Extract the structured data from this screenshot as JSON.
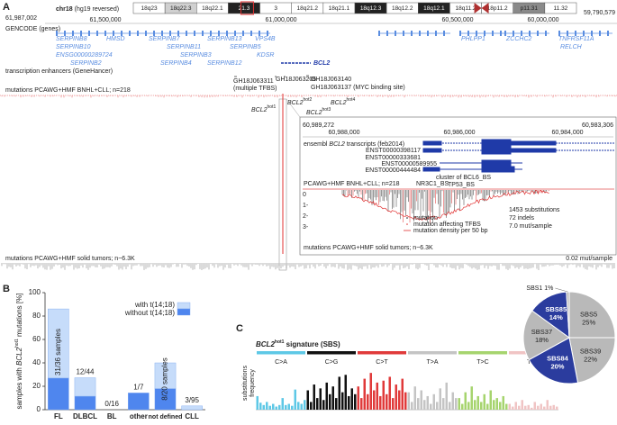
{
  "panel_labels": [
    "A",
    "B",
    "C"
  ],
  "panel_a": {
    "chromosome": "chr18",
    "build": "(hg19 reversed)",
    "bands": [
      {
        "name": "18q23",
        "color": "#ffffff"
      },
      {
        "name": "18q22.3",
        "color": "#d0d0d0"
      },
      {
        "name": "18q22.1",
        "color": "#ffffff"
      },
      {
        "name": "21.3",
        "color": "#222222"
      },
      {
        "name": "3",
        "color": "#ffffff"
      },
      {
        "name": "18q21.2",
        "color": "#ffffff"
      },
      {
        "name": "18q21.1",
        "color": "#ffffff"
      },
      {
        "name": "18q12.3",
        "color": "#222222"
      },
      {
        "name": "18q12.2",
        "color": "#ffffff"
      },
      {
        "name": "18q12.1",
        "color": "#222222"
      },
      {
        "name": "18q11.2",
        "color": "#ffffff"
      },
      {
        "name": "18p11.2",
        "color": "#ffffff"
      },
      {
        "name": "p11.31",
        "color": "#8a8a8a"
      },
      {
        "name": "11.32",
        "color": "#ffffff"
      }
    ],
    "range_start": "61,987,002",
    "range_end": "59,790,579",
    "coordinates": [
      "61,500,000",
      "61,000,000",
      "60,500,000",
      "60,000,000"
    ],
    "gene_track": "GENCODE (genes)",
    "genes": [
      "SERPINB8",
      "HMSD",
      "SERPINB7",
      "SERPINB13",
      "VPS4B",
      "SERPINB10",
      "SERPINB11",
      "SERPINB5",
      "ENSG00000289724",
      "SERPINB3",
      "KDSR",
      "SERPINB2",
      "SERPINB4",
      "SERPINB12",
      "BCL2",
      "PHLPP1",
      "ZCCHC2",
      "TNFRSF11A",
      "RELCH"
    ],
    "enhancer_track": "transcription enhancers (GeneHancer)",
    "mutation_track": "mutations PCAWG+HMF BNHL+CLL; n=218",
    "enhancers": [
      "GH18J063311",
      "(multiple TFBS)",
      "GH18J063205",
      "GH18J063140",
      "GH18J063137 (MYC binding site)"
    ],
    "hotspot_gene": "BCL2",
    "hotspots": [
      "hot1",
      "hot2",
      "hot3",
      "hot4"
    ],
    "inset": {
      "range_start": "60,989,272",
      "range_end": "60,983,306",
      "coordinates": [
        "60,988,000",
        "60,986,000",
        "60,984,000"
      ],
      "transcript_track": [
        "ensembl ",
        "BCL2",
        " transcripts (feb2014)"
      ],
      "transcripts": [
        "ENST00000398117",
        "ENST00000333681",
        "ENST00000589955",
        "ENST00000444484"
      ],
      "sites": [
        "cluster of BCL6_BS",
        "NR3C1_BS",
        "TP53_BS"
      ],
      "mutation_track": "PCAWG+HMF BNHL+CLL; n=218",
      "y_ticks": [
        "0",
        "1-",
        "2-",
        "3-"
      ],
      "legend": [
        "mutation",
        "mutation affecting TFBS",
        "mutation density per 50 bp"
      ],
      "stats": [
        "1453 substitutions",
        "72 indels",
        "7.0 mut/sample"
      ],
      "solid_track": "mutations PCAWG+HMF solid tumors; n~6.3K"
    },
    "solid_track": "mutations PCAWG+HMF solid tumors; n~6.3K",
    "solid_scale": "0.02 mut/sample"
  },
  "chart_data": [
    {
      "type": "bar",
      "stacked": true,
      "ylabel": [
        "samples with ",
        "BCL2",
        "hot1",
        " mutations [%]"
      ],
      "categories": [
        "FL",
        "DLBCL",
        "BL",
        "other",
        "not defined",
        "CLL"
      ],
      "series": [
        {
          "name": "without t(14;18)",
          "color": "#4f86ee",
          "values": [
            27,
            11.5,
            0,
            14.3,
            18,
            0
          ]
        },
        {
          "name": "with t(14;18)",
          "color": "#c6dcfa",
          "values": [
            59.1,
            15.8,
            0,
            0,
            22,
            3.2
          ]
        }
      ],
      "bar_labels": [
        "31/36 samples",
        "12/44",
        "0/16",
        "1/7",
        "8/20 samples",
        "3/95"
      ],
      "ylim": [
        0,
        100
      ],
      "yticks": [
        0,
        20,
        40,
        60,
        80,
        100
      ]
    },
    {
      "type": "signature",
      "title": [
        "BCL2",
        "hot1",
        " signature (SBS)"
      ],
      "ylabel": [
        "substitutions",
        "frequency"
      ],
      "ylim": [
        0,
        1
      ],
      "groups": [
        {
          "name": "C>A",
          "color": "#5ec8e6",
          "values": [
            0.35,
            0.18,
            0.12,
            0.2,
            0.1,
            0.15,
            0.08,
            0.12,
            0.3,
            0.12,
            0.15,
            0.1,
            0.52,
            0.2,
            0.15,
            0.25
          ]
        },
        {
          "name": "C>G",
          "color": "#111111",
          "values": [
            0.5,
            0.2,
            0.65,
            0.3,
            0.55,
            0.25,
            0.7,
            0.4,
            0.6,
            0.3,
            0.85,
            0.45,
            0.9,
            0.35,
            0.55,
            0.4
          ]
        },
        {
          "name": "C>T",
          "color": "#e03a3a",
          "values": [
            0.6,
            0.3,
            0.8,
            0.4,
            0.95,
            0.5,
            0.7,
            0.35,
            0.75,
            0.4,
            0.85,
            0.3,
            0.65,
            0.5,
            0.8,
            0.45
          ]
        },
        {
          "name": "T>A",
          "color": "#c4c4c4",
          "values": [
            0.45,
            0.2,
            0.6,
            0.3,
            0.5,
            0.25,
            0.35,
            0.15,
            0.4,
            0.2,
            0.55,
            0.3,
            0.7,
            0.2,
            0.45,
            0.3
          ]
        },
        {
          "name": "T>C",
          "color": "#a6d46e",
          "values": [
            0.3,
            0.15,
            0.45,
            0.2,
            0.6,
            0.25,
            0.35,
            0.2,
            0.4,
            0.15,
            0.5,
            0.25,
            0.3,
            0.2,
            0.35,
            0.15
          ]
        },
        {
          "name": "T>G",
          "color": "#f0c4c4",
          "values": [
            0.15,
            0.08,
            0.2,
            0.1,
            0.25,
            0.1,
            0.12,
            0.05,
            0.2,
            0.1,
            0.15,
            0.08,
            0.25,
            0.1,
            0.12,
            0.08
          ]
        }
      ]
    },
    {
      "type": "pie",
      "categories": [
        "SBS5",
        "SBS39",
        "SBS84",
        "SBS37",
        "SBS85",
        "SBS1"
      ],
      "values": [
        25,
        22,
        20,
        18,
        14,
        1
      ],
      "value_labels": [
        "25%",
        "22%",
        "20%",
        "18%",
        "14%",
        "1%"
      ],
      "colors": [
        "#b9b9b9",
        "#b9b9b9",
        "#2b3c9e",
        "#b9b9b9",
        "#2b3c9e",
        "#b9b9b9"
      ]
    }
  ]
}
